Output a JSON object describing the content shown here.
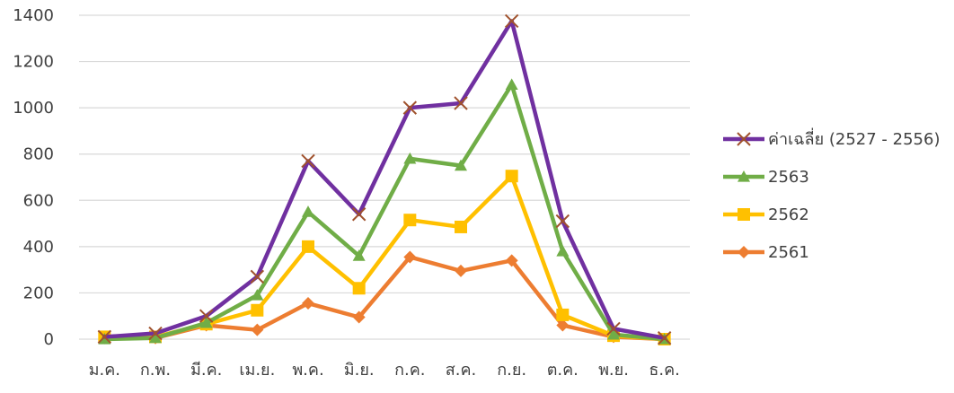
{
  "chart_data": {
    "type": "line",
    "title": "",
    "xlabel": "",
    "ylabel": "",
    "ylim": [
      0,
      1400
    ],
    "yticks": [
      0,
      200,
      400,
      600,
      800,
      1000,
      1200,
      1400
    ],
    "grid": "horizontal",
    "legend_position": "right",
    "categories": [
      "ม.ค.",
      "ก.พ.",
      "มี.ค.",
      "เม.ย.",
      "พ.ค.",
      "มิ.ย.",
      "ก.ค.",
      "ส.ค.",
      "ก.ย.",
      "ต.ค.",
      "พ.ย.",
      "ธ.ค."
    ],
    "series": [
      {
        "name": "ค่าเฉลี่ย (2527 - 2556)",
        "color": "#7030a0",
        "marker": "x",
        "marker_color": "#a0522d",
        "values": [
          10,
          25,
          100,
          270,
          770,
          540,
          1000,
          1020,
          1375,
          510,
          45,
          5
        ]
      },
      {
        "name": "2563",
        "color": "#70ad47",
        "marker": "triangle",
        "values": [
          0,
          5,
          70,
          190,
          550,
          360,
          780,
          750,
          1100,
          380,
          20,
          0
        ]
      },
      {
        "name": "2562",
        "color": "#ffc000",
        "marker": "square",
        "values": [
          10,
          10,
          65,
          125,
          400,
          220,
          515,
          485,
          705,
          105,
          15,
          0
        ]
      },
      {
        "name": "2561",
        "color": "#ed7d31",
        "marker": "diamond",
        "values": [
          5,
          5,
          60,
          40,
          155,
          95,
          355,
          295,
          340,
          60,
          10,
          0
        ]
      }
    ]
  }
}
